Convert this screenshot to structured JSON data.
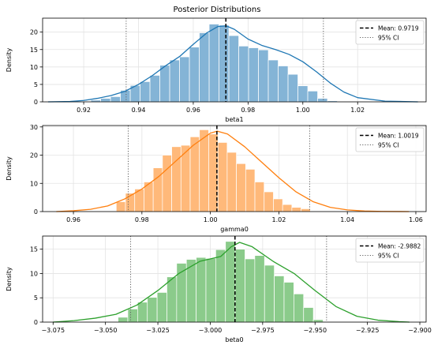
{
  "figure_title": "Posterior Distributions",
  "chart_data": [
    {
      "type": "bar",
      "subtype": "histogram-with-kde",
      "color": "#1f77b4",
      "xlabel": "beta1",
      "ylabel": "Density",
      "xlim": [
        0.905,
        1.045
      ],
      "ylim": [
        0,
        24.0
      ],
      "xticks": [
        0.92,
        0.94,
        0.96,
        0.98,
        1.0,
        1.02
      ],
      "xtick_labels": [
        "0.92",
        "0.94",
        "0.96",
        "0.98",
        "1.00",
        "1.02"
      ],
      "yticks": [
        0,
        5,
        10,
        15,
        20
      ],
      "ytick_labels": [
        "0",
        "5",
        "10",
        "15",
        "20"
      ],
      "bin_start": 0.919,
      "bin_width": 0.0036,
      "values": [
        0.1,
        0.5,
        1.0,
        1.5,
        3.3,
        4.7,
        5.8,
        7.6,
        10.5,
        12.0,
        12.9,
        15.7,
        19.8,
        22.3,
        22.0,
        19.0,
        16.0,
        15.5,
        14.9,
        12.0,
        10.3,
        7.9,
        4.6,
        3.1,
        1.0,
        0.3
      ],
      "kde": {
        "x": [
          0.907,
          0.915,
          0.92,
          0.925,
          0.93,
          0.935,
          0.94,
          0.945,
          0.95,
          0.955,
          0.96,
          0.965,
          0.969,
          0.972,
          0.975,
          0.98,
          0.985,
          0.99,
          0.995,
          1.0,
          1.005,
          1.01,
          1.015,
          1.02,
          1.03,
          1.042
        ],
        "y": [
          0,
          0.1,
          0.4,
          1.0,
          1.8,
          3.0,
          5.0,
          7.5,
          10.4,
          13.0,
          16.5,
          19.8,
          21.6,
          21.8,
          20.8,
          18.0,
          16.2,
          15.0,
          13.6,
          11.5,
          8.6,
          5.4,
          2.8,
          1.2,
          0.2,
          0
        ]
      },
      "mean": 0.9719,
      "ci": [
        0.9355,
        1.0075
      ],
      "legend": {
        "position": "top-right",
        "entries": [
          {
            "style": "dashed",
            "label": "Mean: 0.9719"
          },
          {
            "style": "dotted",
            "label": "95% CI"
          }
        ]
      },
      "grid": true
    },
    {
      "type": "bar",
      "subtype": "histogram-with-kde",
      "color": "#ff7f0e",
      "xlabel": "gamma0",
      "ylabel": "Density",
      "xlim": [
        0.951,
        1.063
      ],
      "ylim": [
        0,
        30.5
      ],
      "xticks": [
        0.96,
        0.98,
        1.0,
        1.02,
        1.04,
        1.06
      ],
      "xtick_labels": [
        "0.96",
        "0.98",
        "1.00",
        "1.02",
        "1.04",
        "1.06"
      ],
      "yticks": [
        0,
        10,
        20,
        30
      ],
      "ytick_labels": [
        "0",
        "10",
        "20",
        "30"
      ],
      "bin_start": 0.9725,
      "bin_width": 0.0027,
      "values": [
        3.5,
        6.5,
        8.0,
        10.5,
        15.5,
        20.0,
        23.0,
        23.5,
        26.5,
        29.0,
        27.5,
        24.5,
        21.0,
        17.0,
        15.0,
        10.5,
        7.0,
        4.5,
        2.5,
        1.5,
        1.0
      ],
      "kde": {
        "x": [
          0.955,
          0.96,
          0.965,
          0.97,
          0.975,
          0.98,
          0.985,
          0.99,
          0.995,
          1.0,
          1.002,
          1.005,
          1.01,
          1.015,
          1.02,
          1.025,
          1.03,
          1.035,
          1.04,
          1.045,
          1.05,
          1.058
        ],
        "y": [
          0,
          0.3,
          0.8,
          2.0,
          4.5,
          8.0,
          12.5,
          18.0,
          23.5,
          27.8,
          28.5,
          27.5,
          23.0,
          17.5,
          12.0,
          7.0,
          3.5,
          1.5,
          0.6,
          0.2,
          0.05,
          0
        ]
      },
      "mean": 1.0019,
      "ci": [
        0.976,
        1.029
      ],
      "legend": {
        "position": "top-right",
        "entries": [
          {
            "style": "dashed",
            "label": "Mean: 1.0019"
          },
          {
            "style": "dotted",
            "label": "95% CI"
          }
        ]
      },
      "grid": true
    },
    {
      "type": "bar",
      "subtype": "histogram-with-kde",
      "color": "#2ca02c",
      "xlabel": "beta0",
      "ylabel": "Density",
      "xlim": [
        -3.08,
        -2.897
      ],
      "ylim": [
        0,
        17.7
      ],
      "xticks": [
        -3.075,
        -3.05,
        -3.025,
        -3.0,
        -2.975,
        -2.95,
        -2.925,
        -2.9
      ],
      "xtick_labels": [
        "−3.075",
        "−3.050",
        "−3.025",
        "−3.000",
        "−2.975",
        "−2.950",
        "−2.925",
        "−2.900"
      ],
      "yticks": [
        0,
        5,
        10,
        15
      ],
      "ytick_labels": [
        "0",
        "5",
        "10",
        "15"
      ],
      "bin_start": -3.044,
      "bin_width": 0.00466,
      "values": [
        1.0,
        2.7,
        4.1,
        5.1,
        6.1,
        9.3,
        12.1,
        12.9,
        13.3,
        13.1,
        14.9,
        16.6,
        15.0,
        13.0,
        13.7,
        11.7,
        9.5,
        8.2,
        5.8,
        3.0,
        0.5
      ],
      "kde": {
        "x": [
          -3.075,
          -3.065,
          -3.055,
          -3.045,
          -3.035,
          -3.025,
          -3.015,
          -3.005,
          -2.995,
          -2.99,
          -2.986,
          -2.98,
          -2.97,
          -2.96,
          -2.95,
          -2.94,
          -2.93,
          -2.92,
          -2.91,
          -2.905
        ],
        "y": [
          0,
          0.3,
          0.8,
          1.6,
          3.5,
          6.5,
          10.0,
          12.5,
          13.5,
          15.5,
          16.4,
          15.5,
          12.5,
          10.0,
          6.5,
          3.2,
          1.2,
          0.4,
          0.1,
          0
        ]
      },
      "mean": -2.9882,
      "ci": [
        -3.038,
        -2.9445
      ],
      "legend": {
        "position": "top-right",
        "entries": [
          {
            "style": "dashed",
            "label": "Mean: -2.9882"
          },
          {
            "style": "dotted",
            "label": "95% CI"
          }
        ]
      },
      "grid": true
    }
  ]
}
